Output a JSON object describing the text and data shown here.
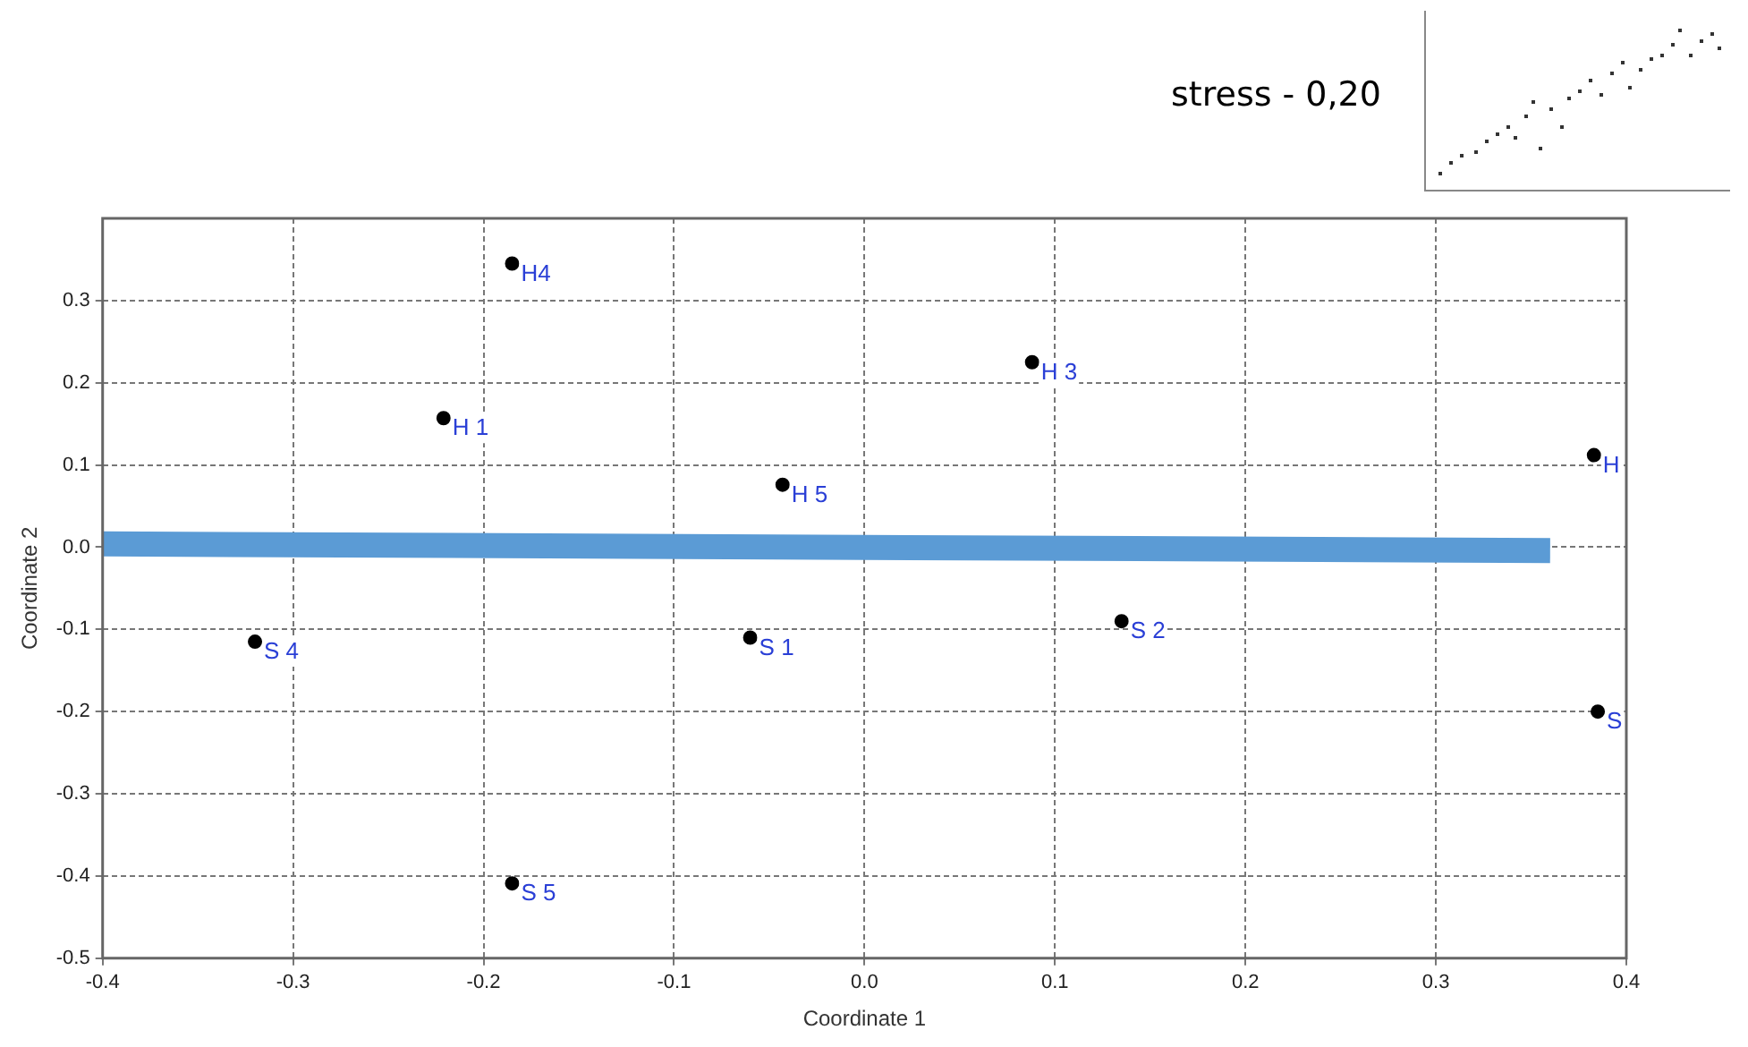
{
  "chart_data": {
    "type": "scatter",
    "xlabel": "Coordinate 1",
    "ylabel": "Coordinate 2",
    "xlim": [
      -0.4,
      0.4
    ],
    "xticks": [
      -0.4,
      -0.3,
      -0.2,
      -0.1,
      {
        "value": 0,
        "label": "0.0"
      },
      0.1,
      0.2,
      0.3,
      0.4
    ],
    "ylim": [
      -0.5,
      0.4
    ],
    "yticks": [
      -0.5,
      -0.4,
      -0.3,
      -0.2,
      -0.1,
      {
        "value": 0,
        "label": "0.0"
      },
      0.1,
      0.2,
      0.3
    ],
    "grid": true,
    "legend": false,
    "marker": "circle",
    "series": [
      {
        "type": "line",
        "color": "#5b9bd5",
        "marker": "none",
        "x": [
          -0.4,
          0.36
        ],
        "values": [
          0.004,
          -0.004
        ]
      },
      {
        "type": "scatter",
        "color": "#000000",
        "x": [
          -0.185,
          -0.221,
          0.088,
          -0.043,
          0.383,
          -0.32,
          -0.06,
          0.135,
          0.385,
          -0.185
        ],
        "values": [
          0.345,
          0.157,
          0.225,
          0.076,
          0.112,
          -0.115,
          -0.11,
          -0.09,
          -0.2,
          -0.409
        ]
      }
    ],
    "annotations": [
      "stress - 0,20",
      {
        "text": "H4",
        "x": -0.185,
        "y": 0.345
      },
      {
        "text": "H 1",
        "x": -0.221,
        "y": 0.157
      },
      {
        "text": "H 3",
        "x": 0.088,
        "y": 0.225
      },
      {
        "text": "H 5",
        "x": -0.043,
        "y": 0.076
      },
      {
        "text": "H",
        "x": 0.383,
        "y": 0.112
      },
      {
        "text": "S 4",
        "x": -0.32,
        "y": -0.115
      },
      {
        "text": "S 1",
        "x": -0.06,
        "y": -0.11
      },
      {
        "text": "S 2",
        "x": 0.135,
        "y": -0.09
      },
      {
        "text": "S",
        "x": 0.385,
        "y": -0.2
      },
      {
        "text": "S 5",
        "x": -0.185,
        "y": -0.409
      }
    ]
  }
}
